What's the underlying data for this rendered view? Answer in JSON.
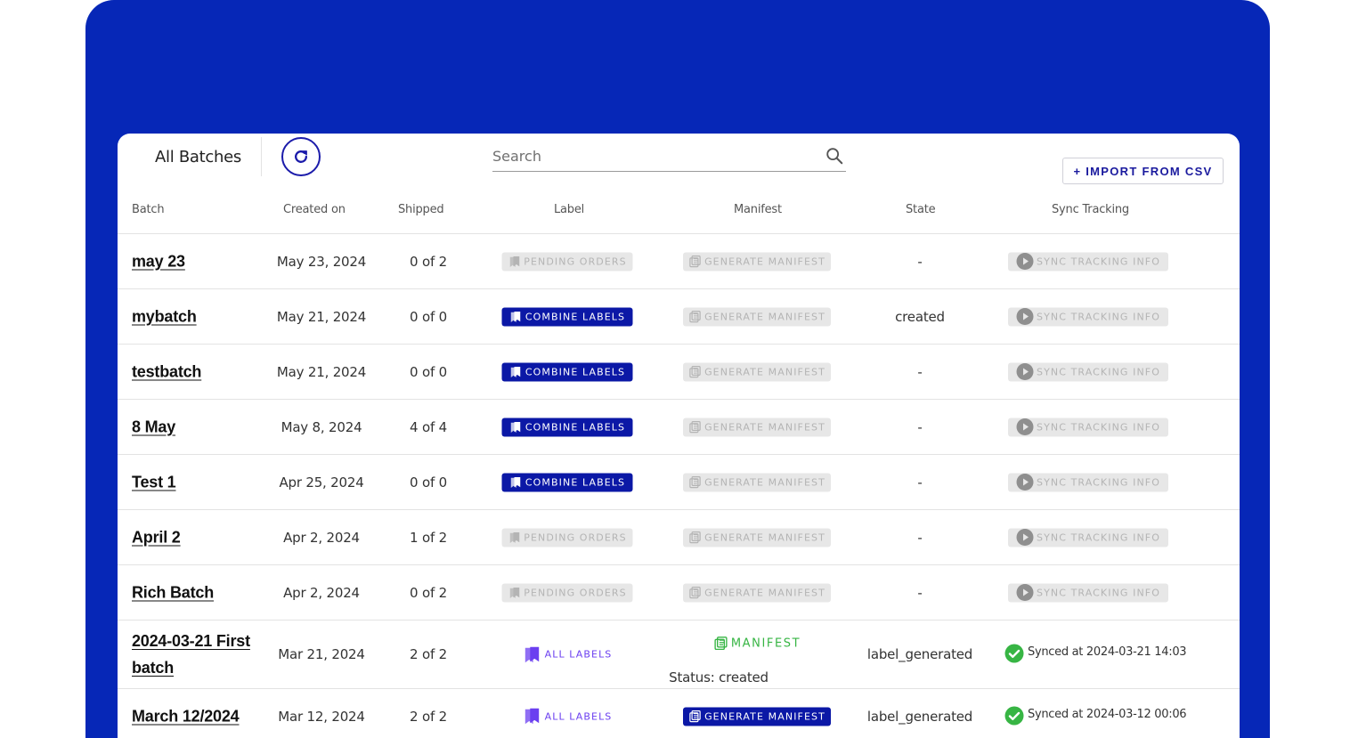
{
  "toolbar": {
    "tab_label": "All Batches",
    "search_placeholder": "Search",
    "import_label": "+ IMPORT FROM CSV"
  },
  "table": {
    "headers": [
      "Batch",
      "Created on",
      "Shipped",
      "Label",
      "Manifest",
      "State",
      "Sync Tracking"
    ],
    "rows": [
      {
        "batch": "may 23",
        "created": "May 23, 2024",
        "shipped": "0 of 2",
        "label": "PENDING ORDERS",
        "label_style": "gray",
        "manifest": "GENERATE MANIFEST",
        "manifest_style": "gray",
        "state": "-",
        "sync": "SYNC TRACKING INFO",
        "sync_style": "gray"
      },
      {
        "batch": "mybatch",
        "created": "May 21, 2024",
        "shipped": "0 of 0",
        "label": "COMBINE LABELS",
        "label_style": "blue",
        "manifest": "GENERATE MANIFEST",
        "manifest_style": "gray",
        "state": "created",
        "sync": "SYNC TRACKING INFO",
        "sync_style": "gray"
      },
      {
        "batch": "testbatch",
        "created": "May 21, 2024",
        "shipped": "0 of 0",
        "label": "COMBINE LABELS",
        "label_style": "blue",
        "manifest": "GENERATE MANIFEST",
        "manifest_style": "gray",
        "state": "-",
        "sync": "SYNC TRACKING INFO",
        "sync_style": "gray"
      },
      {
        "batch": "8 May",
        "created": "May 8, 2024",
        "shipped": "4 of 4",
        "label": "COMBINE LABELS",
        "label_style": "blue",
        "manifest": "GENERATE MANIFEST",
        "manifest_style": "gray",
        "state": "-",
        "sync": "SYNC TRACKING INFO",
        "sync_style": "gray"
      },
      {
        "batch": "Test 1",
        "created": "Apr 25, 2024",
        "shipped": "0 of 0",
        "label": "COMBINE LABELS",
        "label_style": "blue",
        "manifest": "GENERATE MANIFEST",
        "manifest_style": "gray",
        "state": "-",
        "sync": "SYNC TRACKING INFO",
        "sync_style": "gray"
      },
      {
        "batch": "April 2",
        "created": "Apr 2, 2024",
        "shipped": "1 of 2",
        "label": "PENDING ORDERS",
        "label_style": "gray",
        "manifest": "GENERATE MANIFEST",
        "manifest_style": "gray",
        "state": "-",
        "sync": "SYNC TRACKING INFO",
        "sync_style": "gray"
      },
      {
        "batch": "Rich Batch",
        "created": "Apr 2, 2024",
        "shipped": "0 of 2",
        "label": "PENDING ORDERS",
        "label_style": "gray",
        "manifest": "GENERATE MANIFEST",
        "manifest_style": "gray",
        "state": "-",
        "sync": "SYNC TRACKING INFO",
        "sync_style": "gray"
      },
      {
        "batch": "2024-03-21 First batch",
        "created": "Mar 21, 2024",
        "shipped": "2 of 2",
        "label": "ALL LABELS",
        "label_style": "outline",
        "manifest": "MANIFEST",
        "manifest_style": "green",
        "manifest_status": "Status: created",
        "state": "label_generated",
        "sync": "Synced at 2024-03-21 14:03",
        "sync_style": "synced"
      },
      {
        "batch": "March 12/2024",
        "created": "Mar 12, 2024",
        "shipped": "2 of 2",
        "label": "ALL LABELS",
        "label_style": "outline",
        "manifest": "GENERATE MANIFEST",
        "manifest_style": "blue",
        "state": "label_generated",
        "sync": "Synced at 2024-03-12 00:06",
        "sync_style": "synced"
      }
    ]
  },
  "colors": {
    "background": "#0627b7",
    "primary": "#0b18a6",
    "success": "#37b544",
    "accent_purple": "#6b3ff0"
  },
  "icons": {
    "refresh": "refresh-icon",
    "search": "search-icon",
    "label": "label-icon",
    "manifest": "manifest-icon",
    "sync": "play-icon",
    "synced": "check-circle-icon"
  }
}
